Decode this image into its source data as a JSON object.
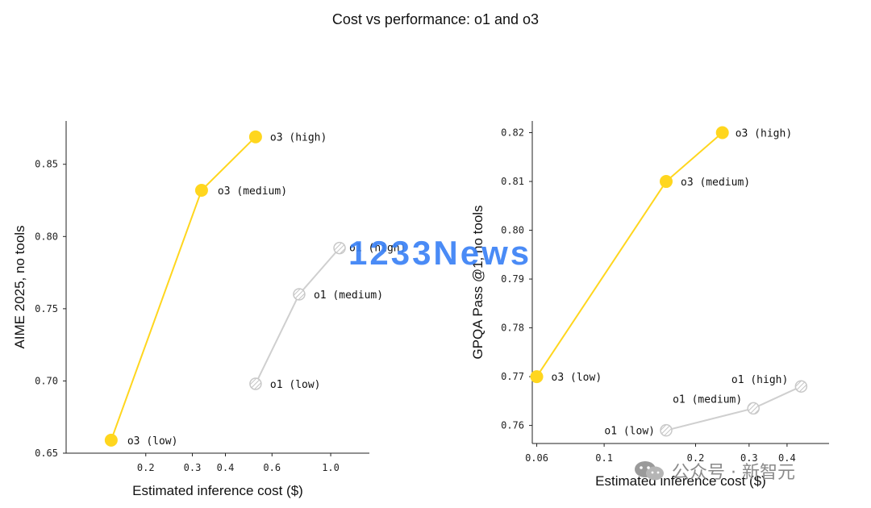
{
  "title": "Cost vs performance: o1 and o3",
  "watermark": "1233News",
  "source_badge": "公众号 · 新智元",
  "colors": {
    "o3": "#FFD61E",
    "o1": "#CFCFCF",
    "axis": "#222222"
  },
  "chart_data": [
    {
      "type": "line",
      "xlabel": "Estimated inference cost ($)",
      "ylabel": "AIME 2025, no tools",
      "xscale": "log",
      "xticks": [
        {
          "value": 0.2,
          "label": "0.2"
        },
        {
          "value": 0.3,
          "label": "0.3"
        },
        {
          "value": 0.4,
          "label": "0.4"
        },
        {
          "value": 0.6,
          "label": "0.6"
        },
        {
          "value": 1.0,
          "label": "1.0"
        }
      ],
      "xlim": [
        0.1,
        1.4
      ],
      "yticks": [
        {
          "value": 0.65,
          "label": "0.65"
        },
        {
          "value": 0.7,
          "label": "0.70"
        },
        {
          "value": 0.75,
          "label": "0.75"
        },
        {
          "value": 0.8,
          "label": "0.80"
        },
        {
          "value": 0.85,
          "label": "0.85"
        }
      ],
      "ylim": [
        0.65,
        0.88
      ],
      "series": [
        {
          "key": "o3",
          "style": "filled",
          "points": [
            {
              "label": "o3 (low)",
              "x": 0.148,
              "y": 0.659
            },
            {
              "label": "o3 (medium)",
              "x": 0.325,
              "y": 0.832
            },
            {
              "label": "o3 (high)",
              "x": 0.52,
              "y": 0.869
            }
          ]
        },
        {
          "key": "o1",
          "style": "hatched",
          "points": [
            {
              "label": "o1 (low)",
              "x": 0.52,
              "y": 0.698
            },
            {
              "label": "o1 (medium)",
              "x": 0.76,
              "y": 0.76
            },
            {
              "label": "o1 (high)",
              "x": 1.08,
              "y": 0.792
            }
          ]
        }
      ]
    },
    {
      "type": "line",
      "xlabel": "Estimated inference cost ($)",
      "ylabel": "GPQA Pass @1, no tools",
      "xscale": "log",
      "xticks": [
        {
          "value": 0.06,
          "label": "0.06"
        },
        {
          "value": 0.1,
          "label": "0.1"
        },
        {
          "value": 0.2,
          "label": "0.2"
        },
        {
          "value": 0.3,
          "label": "0.3"
        },
        {
          "value": 0.4,
          "label": "0.4"
        }
      ],
      "xlim": [
        0.058,
        0.55
      ],
      "yticks": [
        {
          "value": 0.76,
          "label": "0.76"
        },
        {
          "value": 0.77,
          "label": "0.77"
        },
        {
          "value": 0.78,
          "label": "0.78"
        },
        {
          "value": 0.79,
          "label": "0.79"
        },
        {
          "value": 0.8,
          "label": "0.80"
        },
        {
          "value": 0.81,
          "label": "0.81"
        },
        {
          "value": 0.82,
          "label": "0.82"
        }
      ],
      "ylim": [
        0.7563,
        0.8224
      ],
      "series": [
        {
          "key": "o3",
          "style": "filled",
          "points": [
            {
              "label": "o3 (low)",
              "x": 0.06,
              "y": 0.77
            },
            {
              "label": "o3 (medium)",
              "x": 0.16,
              "y": 0.81
            },
            {
              "label": "o3 (high)",
              "x": 0.245,
              "y": 0.82
            }
          ]
        },
        {
          "key": "o1",
          "style": "hatched",
          "points": [
            {
              "label": "o1 (low)",
              "x": 0.16,
              "y": 0.759
            },
            {
              "label": "o1 (medium)",
              "x": 0.31,
              "y": 0.7635
            },
            {
              "label": "o1 (high)",
              "x": 0.445,
              "y": 0.768
            }
          ]
        }
      ]
    }
  ]
}
